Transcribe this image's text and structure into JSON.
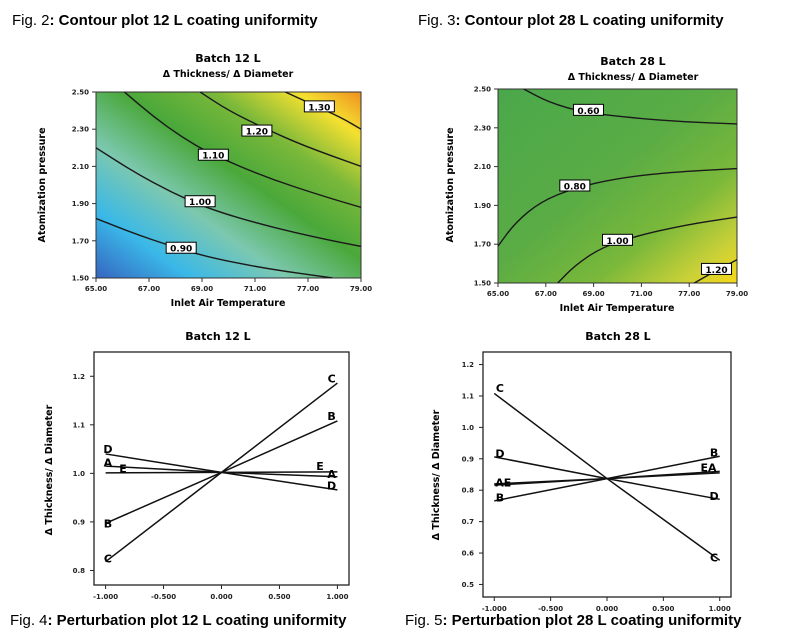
{
  "captions": {
    "fig2": {
      "prefix": "Fig. 2",
      "text": ": Contour plot 12 L coating uniformity"
    },
    "fig3": {
      "prefix": "Fig. 3",
      "text": ": Contour plot 28 L coating uniformity"
    },
    "fig4": {
      "prefix": "Fig. 4",
      "text": ": Perturbation plot 12 L coating uniformity"
    },
    "fig5": {
      "prefix": "Fig. 5",
      "text": ": Perturbation plot 28 L coating uniformity"
    }
  },
  "chart_data": [
    {
      "id": "fig2",
      "type": "contour",
      "title": "Batch 12 L",
      "subtitle": "Δ Thickness/ Δ Diameter",
      "xlabel": "Inlet Air Temperature",
      "ylabel": "Atomization pressure",
      "x_ticks": [
        "65.00",
        "67.00",
        "69.00",
        "71.00",
        "77.00",
        "79.00"
      ],
      "y_ticks": [
        "1.50",
        "1.70",
        "1.90",
        "2.10",
        "2.30",
        "2.50"
      ],
      "xlim": [
        65,
        79
      ],
      "ylim": [
        1.5,
        2.5
      ],
      "color_scale": {
        "low": "#3a7fd0",
        "mid": "#4aa83a",
        "high": "#f0a020"
      },
      "contours": [
        {
          "level": "0.90",
          "points": [
            [
              65.0,
              1.82
            ],
            [
              67.0,
              1.74
            ],
            [
              69.0,
              1.67
            ],
            [
              71.0,
              1.61
            ],
            [
              74.0,
              1.55
            ],
            [
              77.5,
              1.5
            ]
          ]
        },
        {
          "level": "1.00",
          "points": [
            [
              65.0,
              2.2
            ],
            [
              67.0,
              2.07
            ],
            [
              69.0,
              1.96
            ],
            [
              71.0,
              1.87
            ],
            [
              74.0,
              1.78
            ],
            [
              77.0,
              1.71
            ],
            [
              79.0,
              1.67
            ]
          ]
        },
        {
          "level": "1.10",
          "points": [
            [
              66.5,
              2.5
            ],
            [
              68.0,
              2.37
            ],
            [
              69.5,
              2.26
            ],
            [
              71.0,
              2.17
            ],
            [
              74.0,
              2.04
            ],
            [
              77.0,
              1.94
            ],
            [
              79.0,
              1.88
            ]
          ]
        },
        {
          "level": "1.20",
          "points": [
            [
              70.5,
              2.5
            ],
            [
              72.0,
              2.4
            ],
            [
              74.0,
              2.3
            ],
            [
              76.0,
              2.21
            ],
            [
              79.0,
              2.1
            ]
          ]
        },
        {
          "level": "1.30",
          "points": [
            [
              75.0,
              2.5
            ],
            [
              76.5,
              2.43
            ],
            [
              78.0,
              2.36
            ],
            [
              79.0,
              2.3
            ]
          ]
        }
      ],
      "contour_label_positions": {
        "0.90": [
          69.5,
          1.66
        ],
        "1.00": [
          70.5,
          1.91
        ],
        "1.10": [
          71.2,
          2.16
        ],
        "1.20": [
          73.5,
          2.29
        ],
        "1.30": [
          76.8,
          2.42
        ]
      }
    },
    {
      "id": "fig3",
      "type": "contour",
      "title": "Batch 28 L",
      "subtitle": "Δ Thickness/ Δ Diameter",
      "xlabel": "Inlet Air Temperature",
      "ylabel": "Atomization pressure",
      "x_ticks": [
        "65.00",
        "67.00",
        "69.00",
        "71.00",
        "77.00",
        "79.00"
      ],
      "y_ticks": [
        "1.50",
        "1.70",
        "1.90",
        "2.10",
        "2.30",
        "2.50"
      ],
      "xlim": [
        65,
        79
      ],
      "ylim": [
        1.5,
        2.5
      ],
      "color_scale": {
        "low": "#4aa84a",
        "mid": "#7ab83a",
        "high": "#f0d020"
      },
      "contours": [
        {
          "level": "0.60",
          "points": [
            [
              66.5,
              2.5
            ],
            [
              68.0,
              2.43
            ],
            [
              70.0,
              2.38
            ],
            [
              73.0,
              2.35
            ],
            [
              76.0,
              2.33
            ],
            [
              79.0,
              2.32
            ]
          ]
        },
        {
          "level": "0.80",
          "points": [
            [
              65.0,
              1.69
            ],
            [
              66.0,
              1.81
            ],
            [
              67.5,
              1.92
            ],
            [
              69.5,
              1.99
            ],
            [
              72.0,
              2.04
            ],
            [
              75.0,
              2.07
            ],
            [
              79.0,
              2.09
            ]
          ]
        },
        {
          "level": "1.00",
          "points": [
            [
              68.5,
              1.5
            ],
            [
              69.5,
              1.59
            ],
            [
              71.0,
              1.68
            ],
            [
              73.0,
              1.74
            ],
            [
              76.0,
              1.8
            ],
            [
              79.0,
              1.84
            ]
          ]
        },
        {
          "level": "1.20",
          "points": [
            [
              76.5,
              1.5
            ],
            [
              77.5,
              1.55
            ],
            [
              79.0,
              1.62
            ]
          ]
        }
      ],
      "contour_label_positions": {
        "0.60": [
          70.3,
          2.39
        ],
        "0.80": [
          69.5,
          2.0
        ],
        "1.00": [
          72.0,
          1.72
        ],
        "1.20": [
          77.8,
          1.57
        ]
      }
    },
    {
      "id": "fig4",
      "type": "line",
      "title": "Batch 12 L",
      "xlabel": "",
      "ylabel": "Δ Thickness/ Δ Diameter",
      "x_ticks": [
        "-1.000",
        "-0.500",
        "0.000",
        "0.500",
        "1.000"
      ],
      "y_ticks": [
        "0.8",
        "0.9",
        "1.0",
        "1.1",
        "1.2"
      ],
      "xlim": [
        -1.1,
        1.1
      ],
      "ylim": [
        0.77,
        1.25
      ],
      "x": [
        -1.0,
        0.0,
        1.0
      ],
      "series": [
        {
          "name": "A",
          "values": [
            1.015,
            1.002,
            0.993
          ]
        },
        {
          "name": "B",
          "values": [
            0.897,
            1.002,
            1.108
          ]
        },
        {
          "name": "C",
          "values": [
            0.818,
            1.002,
            1.186
          ]
        },
        {
          "name": "D",
          "values": [
            1.04,
            1.002,
            0.966
          ]
        },
        {
          "name": "E",
          "values": [
            1.001,
            1.002,
            1.003
          ]
        }
      ],
      "label_positions": {
        "A_left": [
          -0.98,
          1.022
        ],
        "E_left": [
          -0.85,
          1.01
        ],
        "B_left": [
          -0.98,
          0.897
        ],
        "C_left": [
          -0.98,
          0.825
        ],
        "D_left": [
          -0.98,
          1.05
        ],
        "C_right": [
          0.95,
          1.195
        ],
        "B_right": [
          0.95,
          1.118
        ],
        "E_right": [
          0.85,
          1.015
        ],
        "A_right": [
          0.95,
          0.999
        ],
        "D_right": [
          0.95,
          0.975
        ]
      }
    },
    {
      "id": "fig5",
      "type": "line",
      "title": "Batch 28 L",
      "xlabel": "",
      "ylabel": "Δ Thickness/ Δ Diameter",
      "x_ticks": [
        "-1.000",
        "-0.500",
        "0.000",
        "0.500",
        "1.000"
      ],
      "y_ticks": [
        "0.5",
        "0.6",
        "0.7",
        "0.8",
        "0.9",
        "1.0",
        "1.1",
        "1.2"
      ],
      "xlim": [
        -1.1,
        1.1
      ],
      "ylim": [
        0.46,
        1.24
      ],
      "x": [
        -1.0,
        0.0,
        1.0
      ],
      "series": [
        {
          "name": "A",
          "values": [
            0.82,
            0.837,
            0.855
          ]
        },
        {
          "name": "B",
          "values": [
            0.766,
            0.837,
            0.908
          ]
        },
        {
          "name": "C",
          "values": [
            1.108,
            0.837,
            0.577
          ]
        },
        {
          "name": "D",
          "values": [
            0.906,
            0.837,
            0.771
          ]
        },
        {
          "name": "E",
          "values": [
            0.816,
            0.837,
            0.86
          ]
        }
      ],
      "label_positions": {
        "C_left": [
          -0.95,
          1.125
        ],
        "D_left": [
          -0.95,
          0.917
        ],
        "AE_left": [
          -0.92,
          0.825
        ],
        "B_left": [
          -0.95,
          0.777
        ],
        "B_right": [
          0.95,
          0.92
        ],
        "EA_right": [
          0.9,
          0.872
        ],
        "D_right": [
          0.95,
          0.782
        ],
        "C_right": [
          0.95,
          0.585
        ]
      }
    }
  ]
}
